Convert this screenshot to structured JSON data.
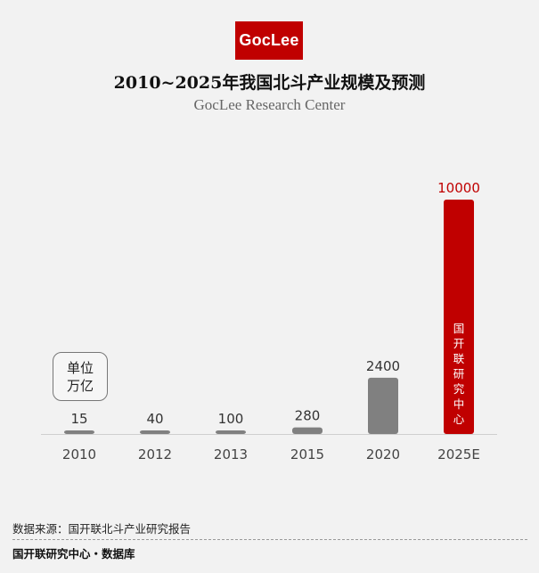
{
  "brand": {
    "logo_text": "GocLee",
    "accent_color": "#c00000",
    "bar_color": "#808080"
  },
  "header": {
    "title": "2010~2025年我国北斗产业规模及预测",
    "subtitle": "GocLee Research Center"
  },
  "unit_badge": {
    "line1": "单位",
    "line2": "万亿"
  },
  "chart_data": {
    "type": "bar",
    "title": "2010~2025年我国北斗产业规模及预测",
    "categories": [
      "2010",
      "2012",
      "2013",
      "2015",
      "2020",
      "2025E"
    ],
    "values": [
      15,
      40,
      100,
      280,
      2400,
      10000
    ],
    "value_labels": [
      "15",
      "40",
      "100",
      "280",
      "2400",
      "10000"
    ],
    "highlight_index": 5,
    "highlight_inner_label": "国开联研究中心",
    "xlabel": "",
    "ylabel": "",
    "unit": "万亿",
    "ylim": [
      0,
      10000
    ],
    "grid": false,
    "legend": "none"
  },
  "footer": {
    "source": "数据来源：国开联北斗产业研究报告",
    "brand": "国开联研究中心・数据库"
  }
}
